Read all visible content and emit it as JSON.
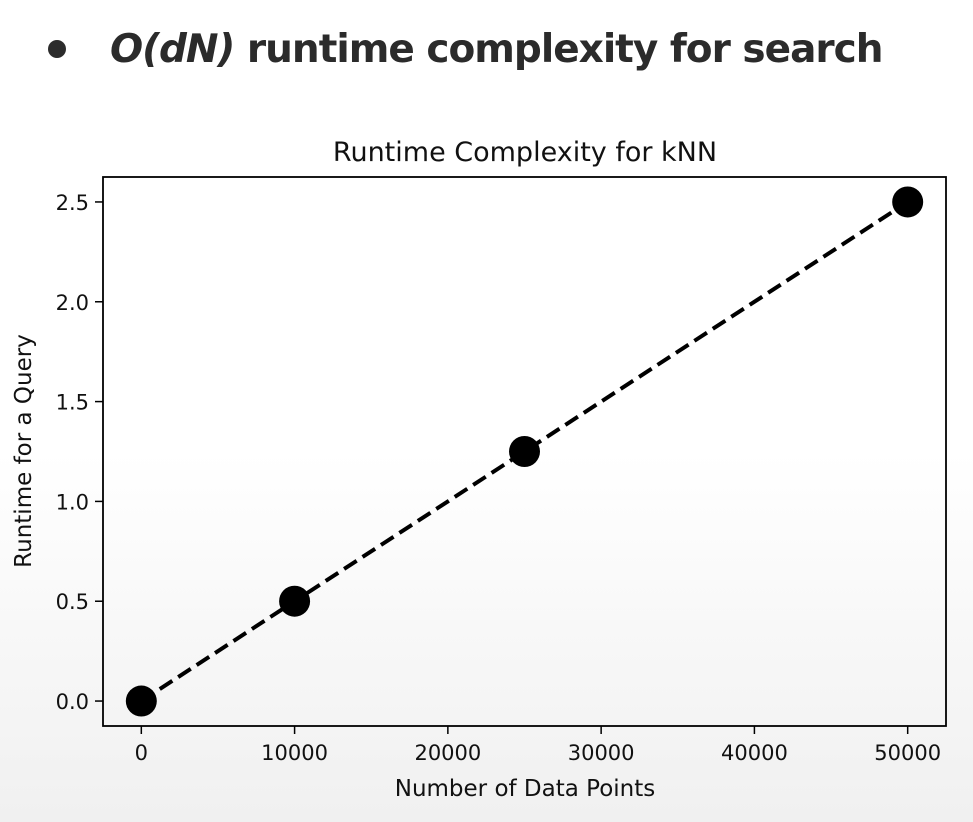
{
  "slide": {
    "bullet_math": "O(dN)",
    "bullet_text": " runtime complexity for search"
  },
  "chart_data": {
    "type": "line",
    "title": "Runtime Complexity for kNN",
    "xlabel": "Number of Data Points",
    "ylabel": "Runtime for a Query",
    "x": [
      0,
      10000,
      25000,
      50000
    ],
    "series": [
      {
        "values": [
          0.0,
          0.5,
          1.25,
          2.5
        ]
      }
    ],
    "xlim": [
      -2500,
      52500
    ],
    "ylim": [
      -0.125,
      2.625
    ],
    "xticks": [
      0,
      10000,
      20000,
      30000,
      40000,
      50000
    ],
    "xtick_labels": [
      "0",
      "10000",
      "20000",
      "30000",
      "40000",
      "50000"
    ],
    "yticks": [
      0.0,
      0.5,
      1.0,
      1.5,
      2.0,
      2.5
    ],
    "ytick_labels": [
      "0.0",
      "0.5",
      "1.0",
      "1.5",
      "2.0",
      "2.5"
    ],
    "line_style": "dashed",
    "marker": "circle",
    "line_color": "#000000",
    "grid": false,
    "legend": "none"
  }
}
